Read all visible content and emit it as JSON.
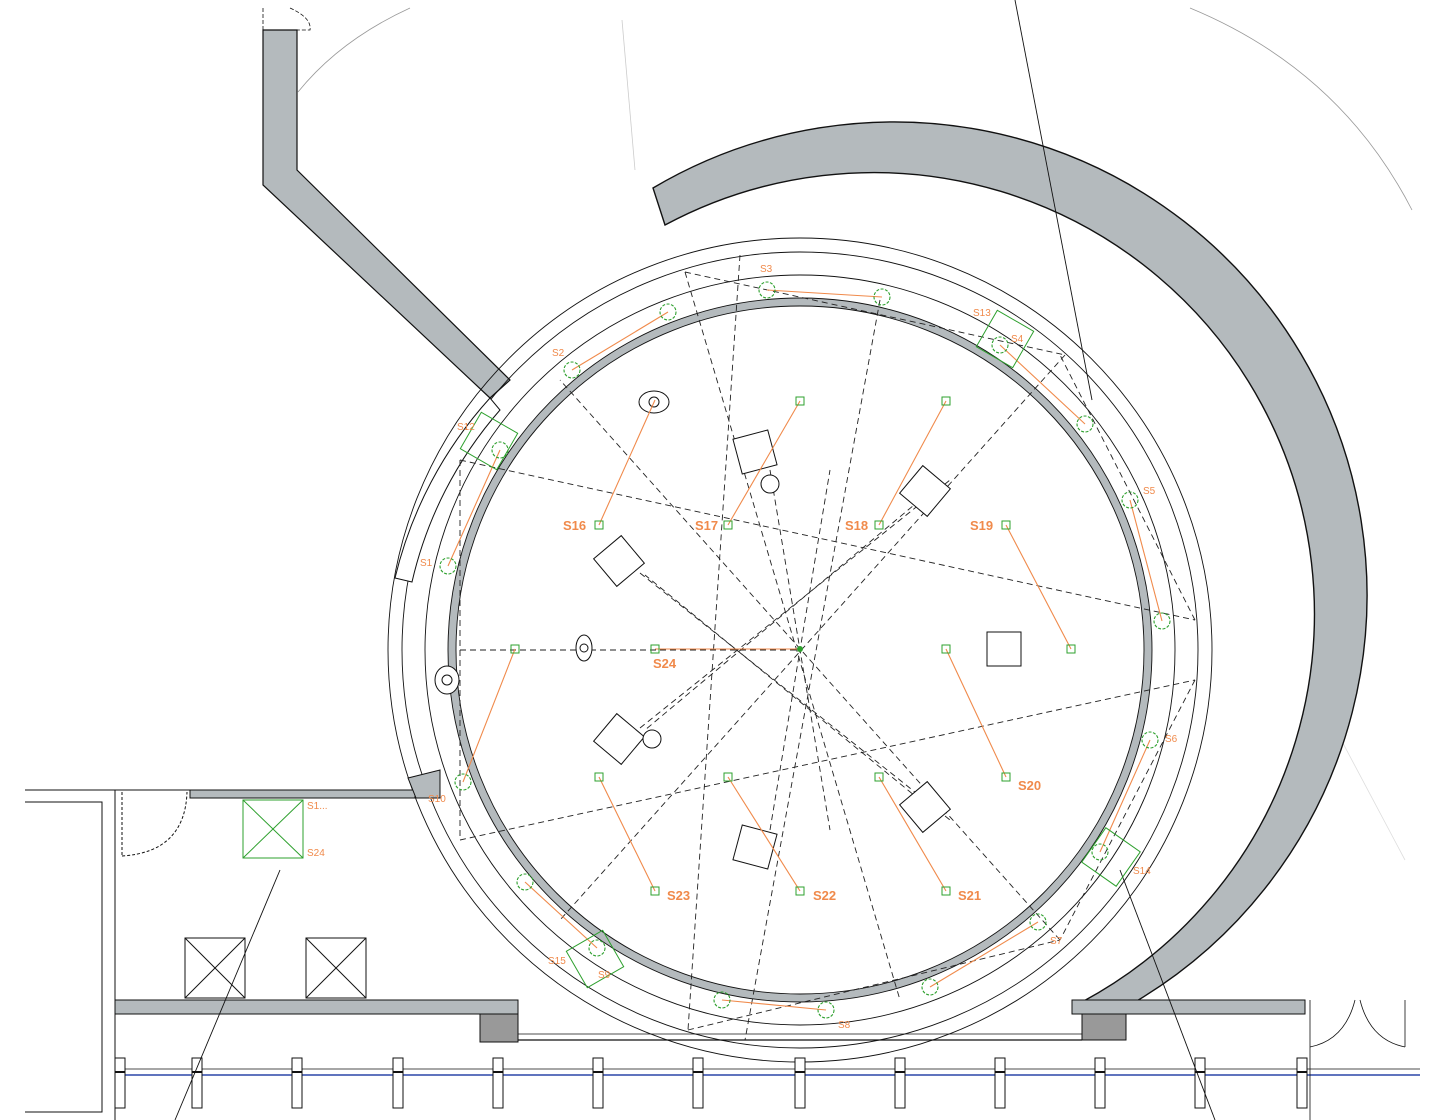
{
  "colors": {
    "wall_fill": "#b4babd",
    "line": "#111111",
    "accent": "#f08a4b",
    "sensor": "#2ea02e",
    "rail": "#2b47a8"
  },
  "labels": {
    "S1": "S1",
    "S2": "S2",
    "S3": "S3",
    "S4": "S4",
    "S5": "S5",
    "S6": "S6",
    "S7": "S7",
    "S8": "S8",
    "S9": "S9",
    "S10": "S10",
    "S12": "S12",
    "S13": "S13",
    "S14": "S14",
    "S15": "S15",
    "S16": "S16",
    "S17": "S17",
    "S18": "S18",
    "S19": "S19",
    "S20": "S20",
    "S21": "S21",
    "S22": "S22",
    "S23": "S23",
    "S24": "S24",
    "S1_trunc": "S1...",
    "S24_room": "S24"
  }
}
